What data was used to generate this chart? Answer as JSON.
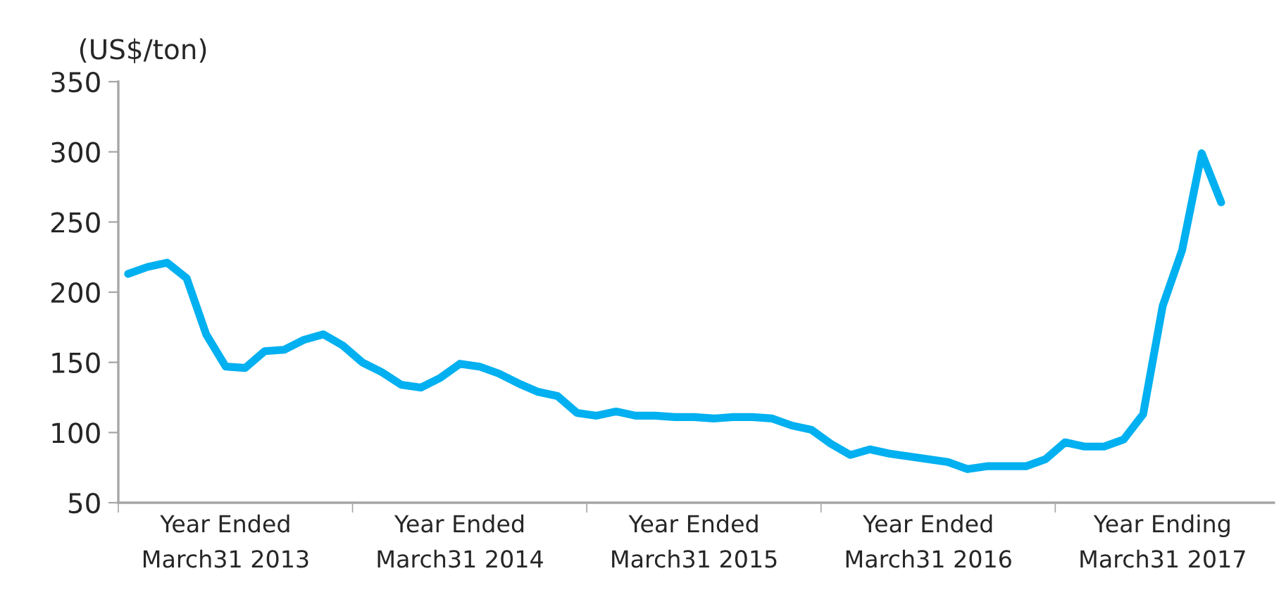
{
  "chart_data": {
    "type": "line",
    "ylabel": "(US$/ton)",
    "categories": [
      null,
      null,
      null,
      null,
      null,
      "Year Ended\nMarch31 2013",
      null,
      null,
      null,
      null,
      null,
      null,
      null,
      null,
      null,
      null,
      null,
      "Year Ended\nMarch31 2014",
      null,
      null,
      null,
      null,
      null,
      null,
      null,
      null,
      null,
      null,
      null,
      "Year Ended\nMarch31 2015",
      null,
      null,
      null,
      null,
      null,
      null,
      null,
      null,
      null,
      null,
      null,
      "Year Ended\nMarch31 2016",
      null,
      null,
      null,
      null,
      null,
      null,
      null,
      null,
      null,
      null,
      null,
      "Year Ending\nMarch31 2017",
      null,
      null,
      null
    ],
    "series": [
      {
        "color": "#00b0f0",
        "values": [
          213,
          218,
          221,
          210,
          170,
          147,
          146,
          158,
          159,
          166,
          170,
          162,
          150,
          143,
          134,
          132,
          139,
          149,
          147,
          142,
          135,
          129,
          126,
          114,
          112,
          115,
          112,
          112,
          111,
          111,
          110,
          111,
          111,
          110,
          105,
          102,
          92,
          84,
          88,
          85,
          83,
          81,
          79,
          74,
          76,
          76,
          76,
          81,
          93,
          90,
          90,
          95,
          113,
          190,
          230,
          299,
          264
        ]
      }
    ],
    "ylim": [
      50,
      350
    ],
    "yticks": [
      50,
      100,
      150,
      200,
      250,
      300,
      350
    ],
    "grid": false,
    "legend": false,
    "marker": "none",
    "line_style": "solid"
  }
}
